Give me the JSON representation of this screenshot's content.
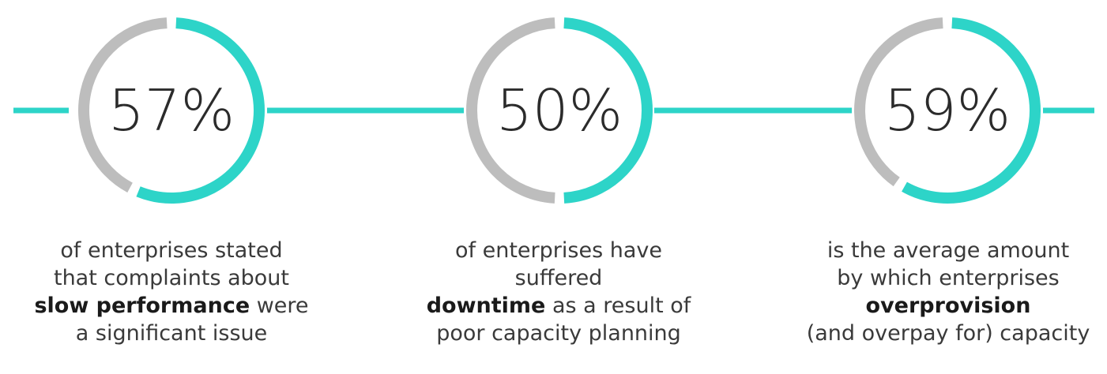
{
  "colors": {
    "accent": "#2dd4c8",
    "track": "#bdbdbd",
    "connector": "#2dd4c8"
  },
  "chart_data": {
    "type": "donut",
    "items": [
      {
        "value": 57,
        "label": "57%",
        "caption": {
          "line1": "of enterprises stated",
          "line2": "that complaints about",
          "bold": "slow performance",
          "after_bold": " were",
          "line4": "a significant issue"
        }
      },
      {
        "value": 50,
        "label": "50%",
        "caption": {
          "line1": "of enterprises have suffered",
          "bold": "downtime",
          "after_bold": " as a result of",
          "line3": "poor capacity planning"
        }
      },
      {
        "value": 59,
        "label": "59%",
        "caption": {
          "line1": "is the average amount",
          "line2": "by which enterprises",
          "bold": "overprovision",
          "line4": "(and overpay for) capacity"
        }
      }
    ]
  }
}
